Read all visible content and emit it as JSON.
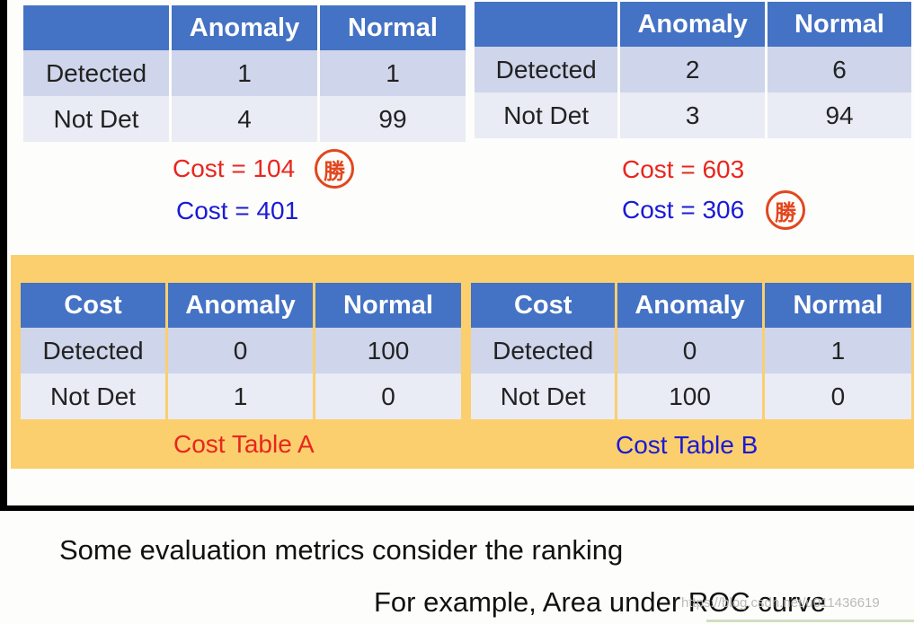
{
  "table_a": {
    "headers": [
      "",
      "Anomaly",
      "Normal"
    ],
    "rows": [
      {
        "label": "Detected",
        "anomaly": "1",
        "normal": "1"
      },
      {
        "label": "Not Det",
        "anomaly": "4",
        "normal": "99"
      }
    ],
    "cost_red": "Cost = 104",
    "cost_blue": "Cost = 401"
  },
  "table_b": {
    "headers": [
      "",
      "Anomaly",
      "Normal"
    ],
    "rows": [
      {
        "label": "Detected",
        "anomaly": "2",
        "normal": "6"
      },
      {
        "label": "Not Det",
        "anomaly": "3",
        "normal": "94"
      }
    ],
    "cost_red": "Cost = 603",
    "cost_blue": "Cost = 306"
  },
  "win_badge": "勝",
  "cost_table_a": {
    "headers": [
      "Cost",
      "Anomaly",
      "Normal"
    ],
    "rows": [
      {
        "label": "Detected",
        "anomaly": "0",
        "normal": "100"
      },
      {
        "label": "Not Det",
        "anomaly": "1",
        "normal": "0"
      }
    ],
    "caption": "Cost Table A"
  },
  "cost_table_b": {
    "headers": [
      "Cost",
      "Anomaly",
      "Normal"
    ],
    "rows": [
      {
        "label": "Detected",
        "anomaly": "0",
        "normal": "1"
      },
      {
        "label": "Not Det",
        "anomaly": "100",
        "normal": "0"
      }
    ],
    "caption": "Cost Table B"
  },
  "bottom": {
    "line1": "Some evaluation metrics consider the ranking",
    "line2": "For example, Area under ROC curve"
  },
  "watermark": "https://blog.csdn.net/u011436619",
  "colors": {
    "header_blue": "#4472c4",
    "panel_gold": "#fbcf6e",
    "red": "#e8261f",
    "blue": "#1a1ad6"
  }
}
